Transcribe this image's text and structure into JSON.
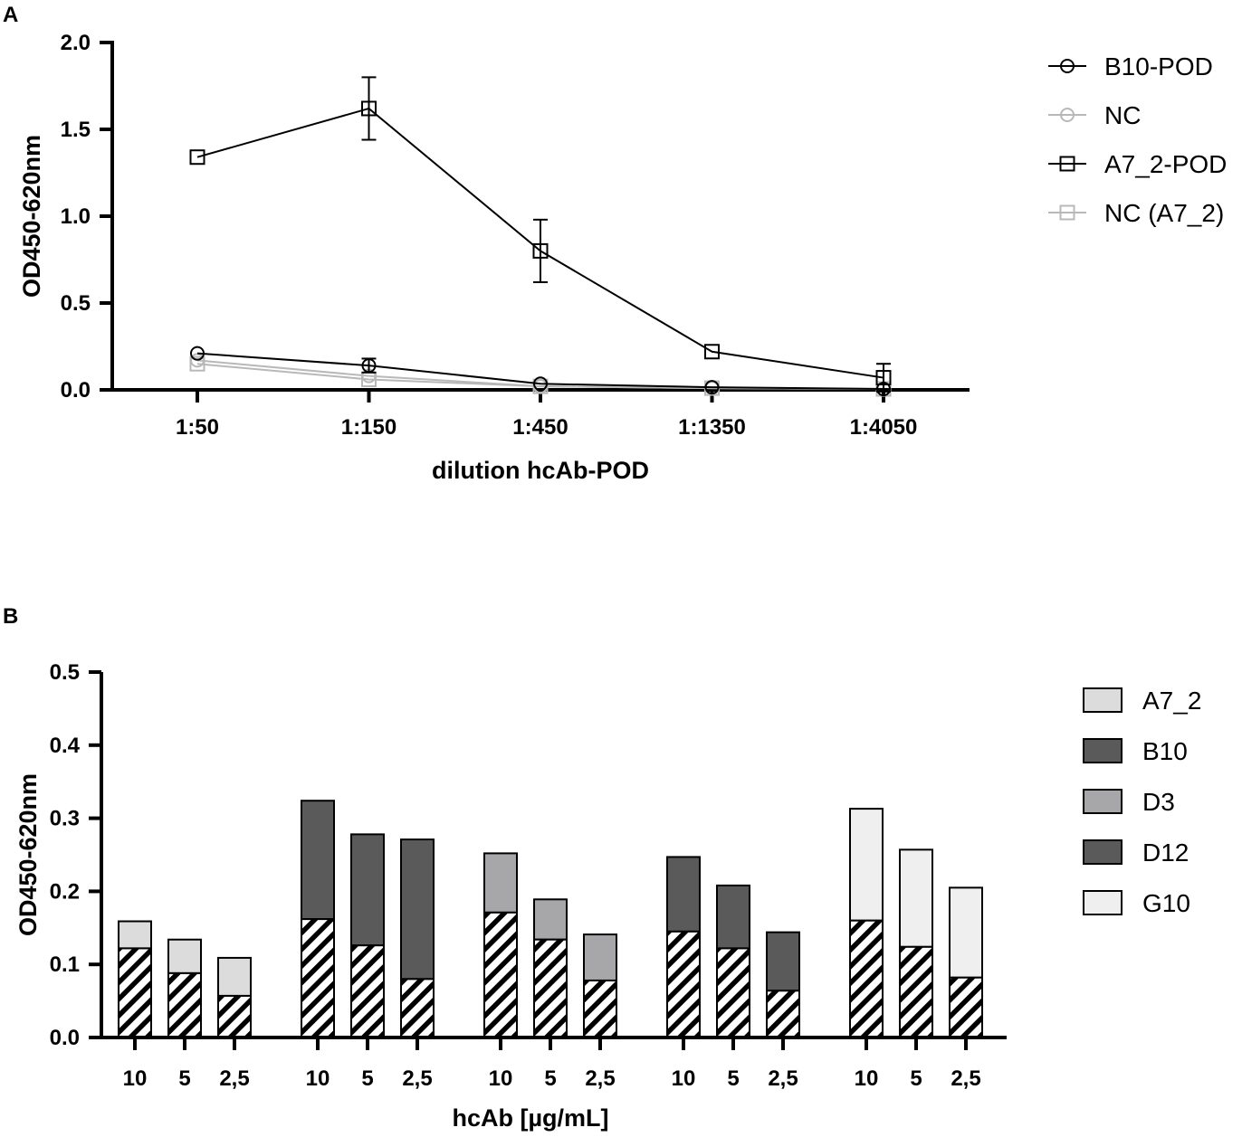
{
  "colors": {
    "dark": "#000000",
    "gray": "#b8b8b8",
    "A7_2": "#dcdcdc",
    "B10": "#5a5a5a",
    "D3": "#a7a7a9",
    "D12": "#5a5a5a",
    "G10": "#efefef"
  },
  "chart_data": [
    {
      "panel": "A",
      "type": "line",
      "xlabel": "dilution hcAb-POD",
      "ylabel": "OD450-620nm",
      "categories": [
        "1:50",
        "1:150",
        "1:450",
        "1:1350",
        "1:4050"
      ],
      "ylim": [
        0,
        2.0
      ],
      "yticks": [
        "0.0",
        "0.5",
        "1.0",
        "1.5",
        "2.0"
      ],
      "series": [
        {
          "name": "B10-POD",
          "marker": "circle",
          "color": "#000000",
          "values": [
            0.21,
            0.14,
            0.035,
            0.015,
            0.005
          ],
          "errors": [
            0.01,
            0.04,
            0.01,
            0.005,
            0.005
          ]
        },
        {
          "name": "NC",
          "marker": "circle",
          "color": "#b8b8b8",
          "values": [
            0.17,
            0.08,
            0.02,
            0.01,
            0.005
          ],
          "errors": [
            0,
            0,
            0,
            0,
            0
          ]
        },
        {
          "name": "A7_2-POD",
          "marker": "square",
          "color": "#000000",
          "values": [
            1.34,
            1.62,
            0.8,
            0.22,
            0.07
          ],
          "errors": [
            0.01,
            0.18,
            0.18,
            0.01,
            0.08
          ]
        },
        {
          "name": "NC (A7_2)",
          "marker": "square",
          "color": "#b8b8b8",
          "values": [
            0.15,
            0.06,
            0.02,
            0.01,
            0.005
          ],
          "errors": [
            0,
            0,
            0,
            0,
            0
          ]
        }
      ]
    },
    {
      "panel": "B",
      "type": "bar",
      "stacked": true,
      "xlabel": "hcAb [µg/mL]",
      "ylabel": "OD450-620nm",
      "ylim": [
        0,
        0.5
      ],
      "yticks": [
        "0.0",
        "0.1",
        "0.2",
        "0.3",
        "0.4",
        "0.5"
      ],
      "categories": [
        "10",
        "5",
        "2,5"
      ],
      "groups": [
        {
          "name": "A7_2",
          "color": "#dcdcdc",
          "totals": [
            0.159,
            0.134,
            0.109
          ],
          "hatched": [
            0.122,
            0.088,
            0.057
          ]
        },
        {
          "name": "B10",
          "color": "#5a5a5a",
          "totals": [
            0.324,
            0.278,
            0.271
          ],
          "hatched": [
            0.162,
            0.126,
            0.08
          ]
        },
        {
          "name": "D3",
          "color": "#a7a7a9",
          "totals": [
            0.252,
            0.189,
            0.141
          ],
          "hatched": [
            0.171,
            0.134,
            0.078
          ]
        },
        {
          "name": "D12",
          "color": "#5a5a5a",
          "totals": [
            0.247,
            0.208,
            0.144
          ],
          "hatched": [
            0.145,
            0.122,
            0.064
          ]
        },
        {
          "name": "G10",
          "color": "#efefef",
          "totals": [
            0.313,
            0.257,
            0.205
          ],
          "hatched": [
            0.16,
            0.124,
            0.082
          ]
        }
      ]
    }
  ]
}
